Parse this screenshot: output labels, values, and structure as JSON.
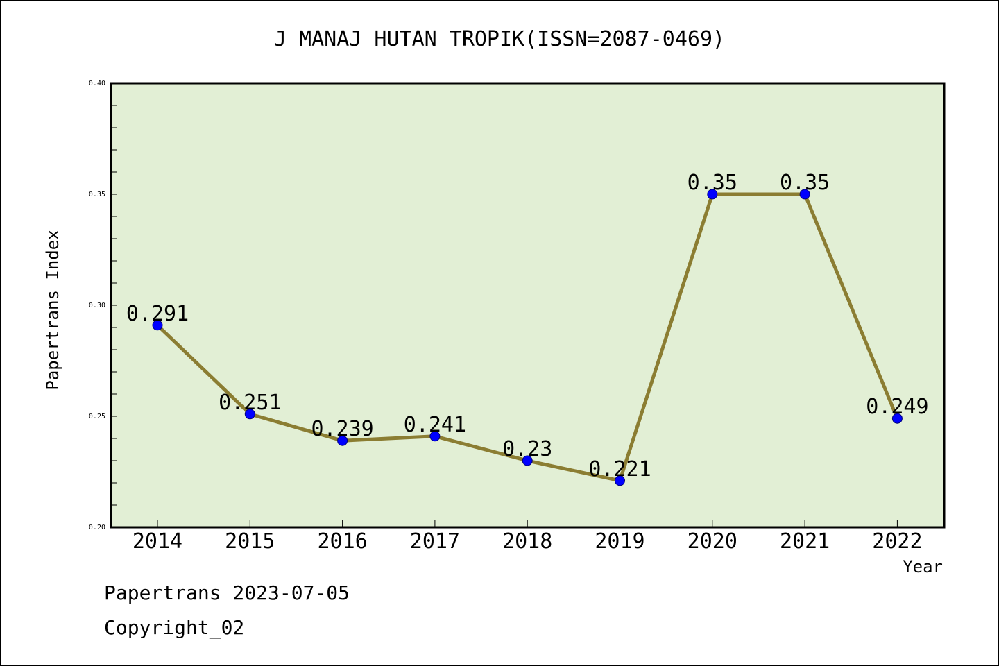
{
  "chart_data": {
    "type": "line",
    "title": "J MANAJ HUTAN TROPIK(ISSN=2087-0469)",
    "xlabel": "Year",
    "ylabel": "Papertrans Index",
    "categories": [
      "2014",
      "2015",
      "2016",
      "2017",
      "2018",
      "2019",
      "2020",
      "2021",
      "2022"
    ],
    "values": [
      0.291,
      0.251,
      0.239,
      0.241,
      0.23,
      0.221,
      0.35,
      0.35,
      0.249
    ],
    "data_labels": [
      "0.291",
      "0.251",
      "0.239",
      "0.241",
      "0.23",
      "0.221",
      "0.35",
      "0.35",
      "0.249"
    ],
    "ylim": [
      0.2,
      0.4
    ],
    "yticks": [
      "0.20",
      "0.25",
      "0.30",
      "0.35",
      "0.40"
    ],
    "grid": false,
    "colors": {
      "plot_background": "#e2efd5",
      "line": "#8b7d32",
      "marker": "#0000ff"
    }
  },
  "footer": {
    "line1": "Papertrans 2023-07-05",
    "line2": "Copyright_02"
  }
}
